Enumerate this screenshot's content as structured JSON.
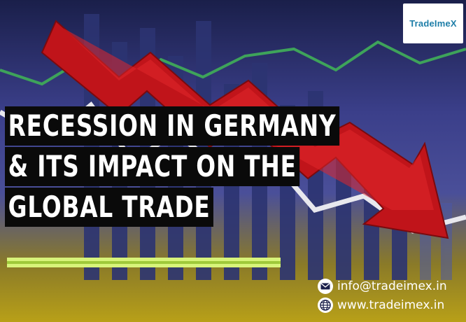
{
  "logo": {
    "text": "TradeImeX"
  },
  "headline": {
    "line1": "RECESSION IN GERMANY",
    "line2": "& ITS IMPACT ON THE",
    "line3": "GLOBAL TRADE"
  },
  "contact": {
    "email": "info@tradeimex.in",
    "website": "www.tradeimex.in",
    "email_icon": "mail-icon",
    "website_icon": "globe-icon"
  },
  "colors": {
    "arrow_red": "#c0141a",
    "headline_bg": "#0a0a0a",
    "headline_text": "#ffffff",
    "accent_green": "#d8f47a",
    "logo_teal": "#1e7ea8"
  }
}
